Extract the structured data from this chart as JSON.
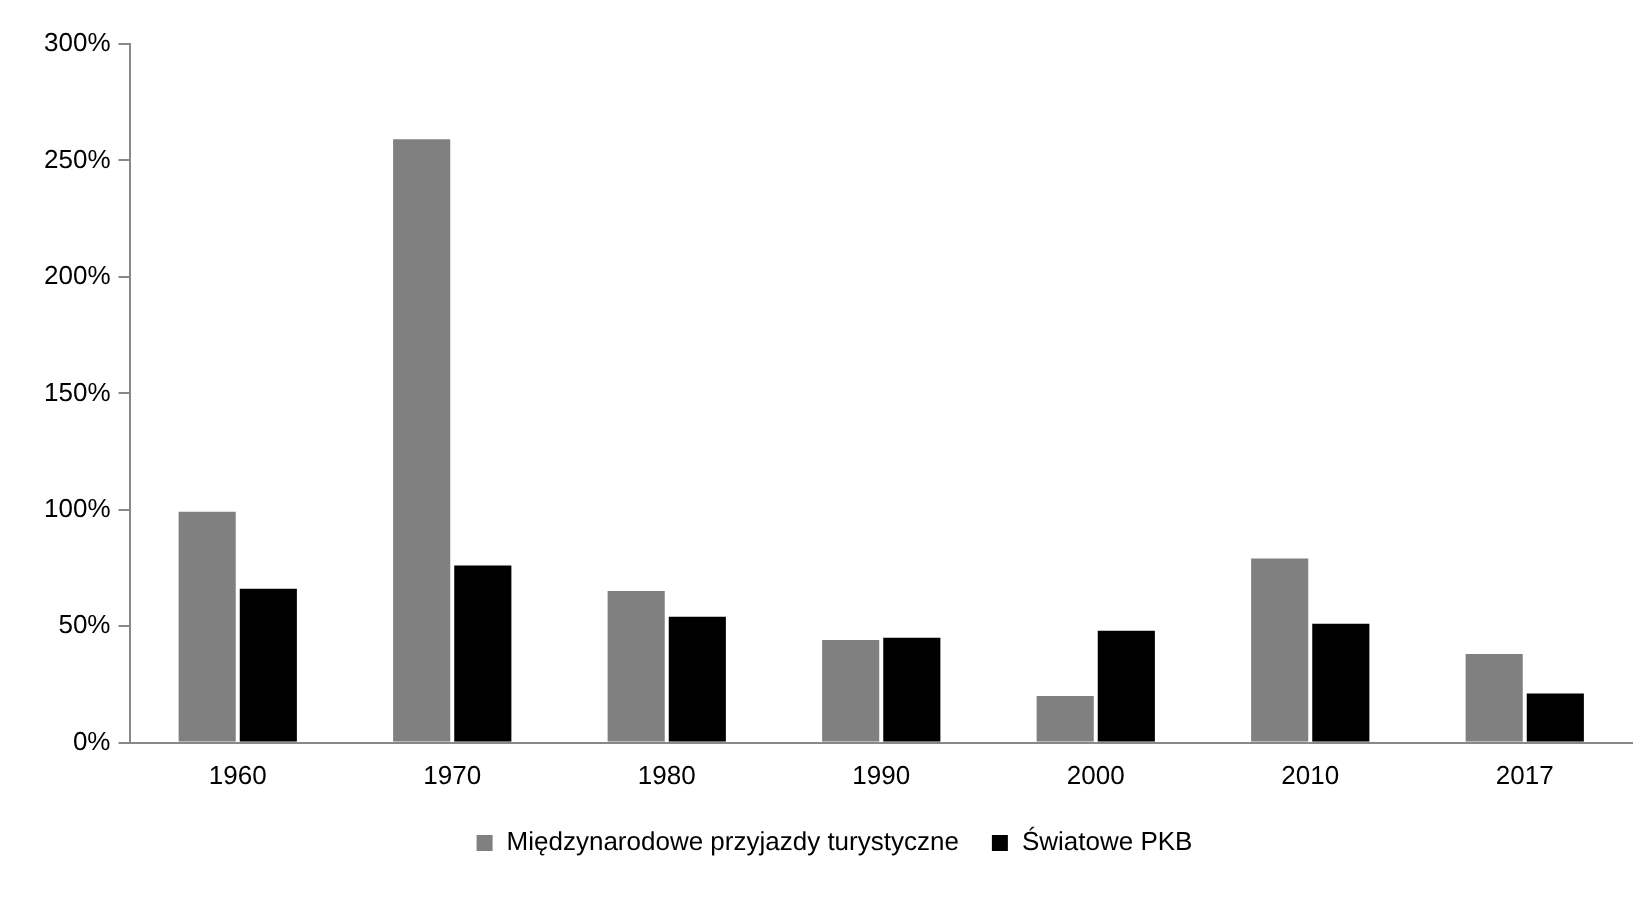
{
  "chart_data": {
    "type": "bar",
    "categories": [
      "1960",
      "1970",
      "1980",
      "1990",
      "2000",
      "2010",
      "2017"
    ],
    "series": [
      {
        "name": "Międzynarodowe przyjazdy turystyczne",
        "color": "#808080",
        "values": [
          100,
          260,
          66,
          45,
          21,
          80,
          39
        ]
      },
      {
        "name": "Światowe PKB",
        "color": "#000000",
        "values": [
          67,
          77,
          55,
          46,
          49,
          52,
          22
        ]
      }
    ],
    "ylim": [
      0,
      300
    ],
    "yticks": [
      {
        "value": 0,
        "label": "0%"
      },
      {
        "value": 50,
        "label": "50%"
      },
      {
        "value": 100,
        "label": "100%"
      },
      {
        "value": 150,
        "label": "150%"
      },
      {
        "value": 200,
        "label": "200%"
      },
      {
        "value": 250,
        "label": "250%"
      },
      {
        "value": 300,
        "label": "300%"
      }
    ],
    "grid": false,
    "legend": "bottom"
  }
}
